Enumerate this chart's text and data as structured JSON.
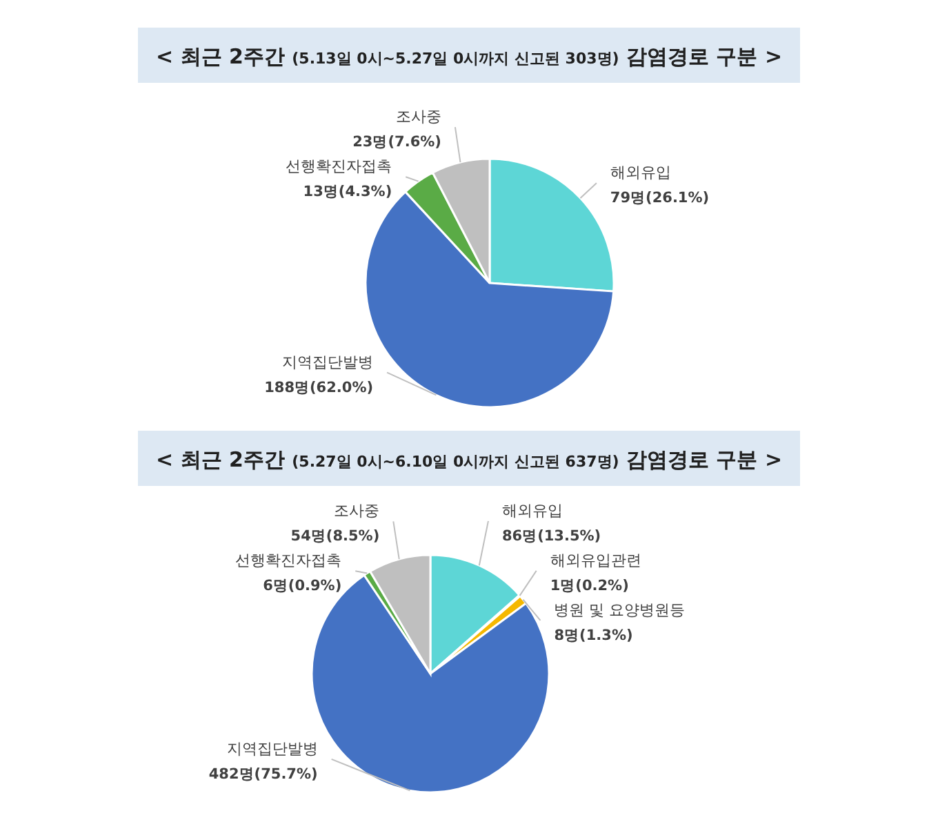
{
  "chart_data": [
    {
      "type": "pie",
      "title": "< 최근 2주간 (5.13일 0시~5.27일 0시까지 신고된 303명) 감염경로 구분 >",
      "categories": [
        "해외유입",
        "지역집단발병",
        "선행확진자접촉",
        "조사중"
      ],
      "values": [
        79,
        188,
        13,
        23
      ],
      "value_labels": [
        "79명(26.1%)",
        "188명(62.0%)",
        "13명(4.3%)",
        "23명(7.6%)"
      ],
      "colors": [
        "#5dd6d6",
        "#4472c4",
        "#5aab46",
        "#bfbfbf"
      ]
    },
    {
      "type": "pie",
      "title": "< 최근 2주간 (5.27일 0시~6.10일 0시까지 신고된 637명) 감염경로 구분 >",
      "categories": [
        "해외유입",
        "해외유입관련",
        "병원 및 요양병원등",
        "지역집단발병",
        "선행확진자접촉",
        "조사중"
      ],
      "values": [
        86,
        1,
        8,
        482,
        6,
        54
      ],
      "value_labels": [
        "86명(13.5%)",
        "1명(0.2%)",
        "8명(1.3%)",
        "482명(75.7%)",
        "6명(0.9%)",
        "54명(8.5%)"
      ],
      "colors": [
        "#5dd6d6",
        "#f4b183",
        "#f5b800",
        "#4472c4",
        "#5aab46",
        "#bfbfbf"
      ]
    }
  ]
}
